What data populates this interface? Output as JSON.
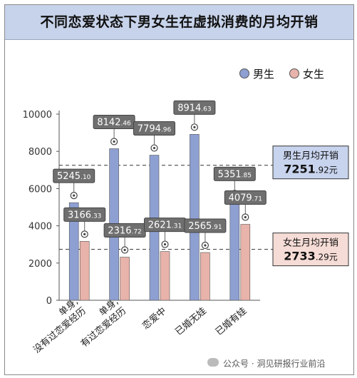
{
  "title": "不同恋爱状态下男女生在虚拟消费的月均开销",
  "watermark": "公众号 · 洞见研报行业前沿",
  "colors": {
    "male": "#8ea0d2",
    "female": "#e8b3aa",
    "male_box": "#c8d4ee",
    "female_box": "#f6dcd6"
  },
  "chart_data": {
    "type": "bar",
    "categories": [
      "单身,\n没有过恋爱经历",
      "单身,\n有过恋爱经历",
      "恋爱中",
      "已婚无娃",
      "已婚有娃"
    ],
    "series": [
      {
        "name": "男生",
        "values": [
          5245.1,
          8142.46,
          7794.96,
          8914.63,
          5351.85
        ],
        "labels": [
          [
            "5245",
            "10"
          ],
          [
            "8142",
            "46"
          ],
          [
            "7794",
            "96"
          ],
          [
            "8914",
            "63"
          ],
          [
            "5351",
            "85"
          ]
        ]
      },
      {
        "name": "女生",
        "values": [
          3166.33,
          2316.72,
          2621.31,
          2565.91,
          4079.71
        ],
        "labels": [
          [
            "3166",
            "33"
          ],
          [
            "2316",
            "72"
          ],
          [
            "2621",
            "31"
          ],
          [
            "2565",
            "91"
          ],
          [
            "4079",
            "71"
          ]
        ]
      }
    ],
    "ylim": [
      0,
      10000
    ],
    "yticks": [
      0,
      2000,
      4000,
      6000,
      8000,
      10000
    ],
    "legend_position": "top-right",
    "reference_lines": [
      {
        "series": "男生",
        "label": "男生月均开销",
        "value": 7251.92,
        "int": "7251",
        "dec": ".92元"
      },
      {
        "series": "女生",
        "label": "女生月均开销",
        "value": 2733.29,
        "int": "2733",
        "dec": ".29元"
      }
    ]
  }
}
